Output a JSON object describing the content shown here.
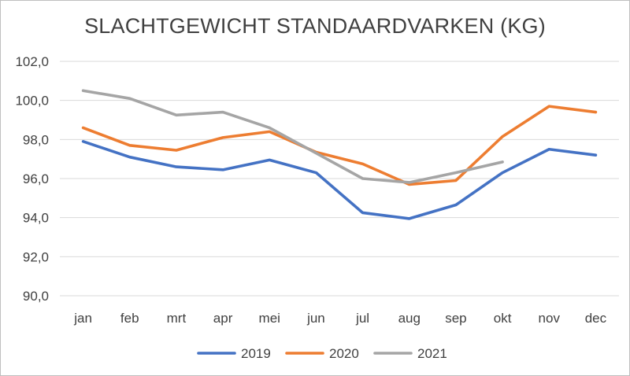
{
  "chart_data": {
    "type": "line",
    "title": "SLACHTGEWICHT STANDAARDVARKEN (KG)",
    "xlabel": "",
    "ylabel": "",
    "categories": [
      "jan",
      "feb",
      "mrt",
      "apr",
      "mei",
      "jun",
      "jul",
      "aug",
      "sep",
      "okt",
      "nov",
      "dec"
    ],
    "yticks": [
      "90,0",
      "92,0",
      "94,0",
      "96,0",
      "98,0",
      "100,0",
      "102,0"
    ],
    "ylim": [
      90,
      102
    ],
    "grid": true,
    "legend_position": "bottom",
    "series": [
      {
        "name": "2019",
        "color": "#4472c4",
        "values": [
          97.9,
          97.1,
          96.6,
          96.45,
          96.95,
          96.3,
          94.25,
          93.95,
          94.65,
          96.3,
          97.5,
          97.2
        ]
      },
      {
        "name": "2020",
        "color": "#ed7d31",
        "values": [
          98.6,
          97.7,
          97.45,
          98.1,
          98.4,
          97.35,
          96.75,
          95.7,
          95.9,
          98.15,
          99.7,
          99.4
        ]
      },
      {
        "name": "2021",
        "color": "#a5a5a5",
        "values": [
          100.5,
          100.1,
          99.25,
          99.4,
          98.6,
          97.3,
          96.0,
          95.8,
          96.3,
          96.85,
          null,
          null
        ]
      }
    ]
  }
}
